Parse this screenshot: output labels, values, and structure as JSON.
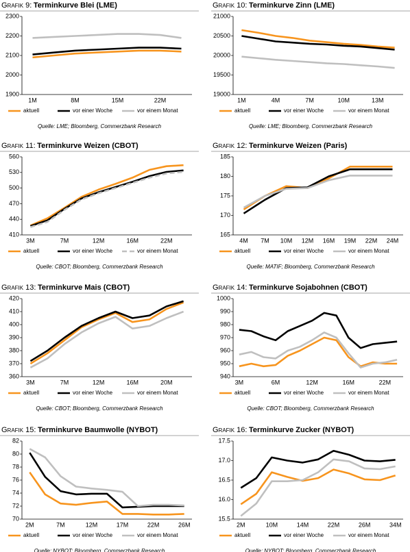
{
  "chart_data": [
    {
      "type": "line",
      "label": "Grafik 9:",
      "title": "Terminkurve Blei (LME)",
      "source": "Quelle: LME; Bloomberg, Commerzbank Research",
      "categories": [
        "1M",
        null,
        "8M",
        null,
        "15M",
        null,
        "22M",
        null
      ],
      "series": [
        {
          "name": "aktuell",
          "color": "#f7941d",
          "values": [
            2090,
            2100,
            2110,
            2115,
            2120,
            2125,
            2125,
            2120
          ]
        },
        {
          "name": "vor einer Woche",
          "color": "#000000",
          "values": [
            2105,
            2115,
            2125,
            2130,
            2135,
            2140,
            2140,
            2135
          ]
        },
        {
          "name": "vor einem Monat",
          "color": "#bfbfbf",
          "values": [
            2190,
            2195,
            2200,
            2205,
            2210,
            2210,
            2205,
            2190
          ]
        }
      ],
      "ylim": [
        1900,
        2300
      ],
      "yticks": [
        1900,
        2000,
        2100,
        2200,
        2300
      ],
      "legend": "bottom"
    },
    {
      "type": "line",
      "label": "Grafik 10:",
      "title": "Terminkurve Zinn (LME)",
      "source": "Quelle: LME; Bloomberg, Commerzbank Research",
      "categories": [
        "1M",
        null,
        "4M",
        null,
        "7M",
        null,
        "10M",
        null,
        "13M",
        null
      ],
      "series": [
        {
          "name": "aktuell",
          "color": "#f7941d",
          "values": [
            20650,
            20580,
            20500,
            20450,
            20380,
            20340,
            20300,
            20270,
            20230,
            20200
          ]
        },
        {
          "name": "vor einer Woche",
          "color": "#000000",
          "values": [
            20500,
            20430,
            20360,
            20330,
            20300,
            20280,
            20250,
            20230,
            20190,
            20150
          ]
        },
        {
          "name": "vor einem Monat",
          "color": "#bfbfbf",
          "values": [
            19970,
            19930,
            19890,
            19860,
            19830,
            19800,
            19780,
            19750,
            19720,
            19680
          ]
        }
      ],
      "ylim": [
        19000,
        21000
      ],
      "yticks": [
        19000,
        19500,
        20000,
        20500,
        21000
      ],
      "legend": "bottom"
    },
    {
      "type": "line",
      "label": "Grafik 11:",
      "title": "Terminkurve Weizen (CBOT)",
      "source": "Quelle: CBOT; Bloomberg, Commerzbank Research",
      "categories": [
        "3M",
        null,
        "7M",
        null,
        "12M",
        null,
        "16M",
        null,
        "22M",
        null
      ],
      "series": [
        {
          "name": "aktuell",
          "color": "#f7941d",
          "values": [
            428,
            442,
            462,
            483,
            497,
            508,
            520,
            535,
            542,
            544
          ]
        },
        {
          "name": "vor einer Woche",
          "color": "#000000",
          "values": [
            427,
            438,
            460,
            480,
            492,
            502,
            512,
            523,
            531,
            534
          ]
        },
        {
          "name": "vor einem Monat",
          "color": "#bfbfbf",
          "dash": true,
          "values": [
            425,
            435,
            458,
            478,
            490,
            500,
            510,
            520,
            528,
            531
          ]
        }
      ],
      "ylim": [
        410,
        560
      ],
      "yticks": [
        410,
        440,
        470,
        500,
        530,
        560
      ],
      "legend": "bottom"
    },
    {
      "type": "line",
      "label": "Grafik 12:",
      "title": "Terminkurve Weizen (Paris)",
      "source": "Quelle: MATIF; Bloomberg, Commerzbank Research",
      "categories": [
        "4M",
        "7M",
        "10M",
        "12M",
        "16M",
        "19M",
        "22M",
        "24M"
      ],
      "series": [
        {
          "name": "aktuell",
          "color": "#f7941d",
          "values": [
            171.5,
            175,
            177.5,
            177,
            179.5,
            182.5,
            182.5,
            182.5
          ]
        },
        {
          "name": "vor einer Woche",
          "color": "#000000",
          "values": [
            170.5,
            174,
            177,
            177.2,
            180,
            181.8,
            181.8,
            181.8
          ]
        },
        {
          "name": "vor einem Monat",
          "color": "#bfbfbf",
          "values": [
            172,
            175,
            176.8,
            177,
            179,
            180.2,
            180.2,
            180.2
          ]
        }
      ],
      "ylim": [
        165,
        185
      ],
      "yticks": [
        165,
        170,
        175,
        180,
        185
      ],
      "legend": "bottom"
    },
    {
      "type": "line",
      "label": "Grafik 13:",
      "title": "Terminkurve Mais (CBOT)",
      "source": "Quelle: CBOT; Bloomberg, Commerzbank Research",
      "categories": [
        "3M",
        null,
        "7M",
        null,
        "12M",
        null,
        "16M",
        null,
        "20M",
        null
      ],
      "series": [
        {
          "name": "aktuell",
          "color": "#f7941d",
          "values": [
            370,
            378,
            388,
            398,
            404,
            409,
            402,
            404,
            412,
            417
          ]
        },
        {
          "name": "vor einer Woche",
          "color": "#000000",
          "values": [
            372,
            380,
            390,
            399,
            405,
            410,
            405,
            407,
            414,
            418
          ]
        },
        {
          "name": "vor einem Monat",
          "color": "#bfbfbf",
          "values": [
            367,
            374,
            385,
            394,
            401,
            406,
            397,
            399,
            405,
            410
          ]
        }
      ],
      "ylim": [
        360,
        420
      ],
      "yticks": [
        360,
        370,
        380,
        390,
        400,
        410,
        420
      ],
      "legend": "bottom"
    },
    {
      "type": "line",
      "label": "Grafik 14:",
      "title": "Terminkurve Sojabohnen (CBOT)",
      "source": "Quelle: CBOT; Bloomberg, Commerzbank Research",
      "categories": [
        "3M",
        null,
        null,
        "6M",
        null,
        null,
        "12M",
        null,
        null,
        "16M",
        null,
        null,
        "22M",
        null
      ],
      "series": [
        {
          "name": "aktuell",
          "color": "#f7941d",
          "values": [
            948,
            950,
            948,
            949,
            956,
            960,
            965,
            970,
            968,
            955,
            948,
            951,
            950,
            950
          ]
        },
        {
          "name": "vor einer Woche",
          "color": "#000000",
          "values": [
            976,
            975,
            971,
            968,
            975,
            979,
            983,
            989,
            987,
            970,
            962,
            965,
            966,
            967
          ]
        },
        {
          "name": "vor einem Monat",
          "color": "#bfbfbf",
          "values": [
            957,
            959,
            955,
            954,
            960,
            963,
            968,
            974,
            970,
            958,
            947,
            950,
            951,
            953
          ]
        }
      ],
      "ylim": [
        940,
        1000
      ],
      "yticks": [
        940,
        950,
        960,
        970,
        980,
        990,
        1000
      ],
      "legend": "bottom"
    },
    {
      "type": "line",
      "label": "Grafik 15:",
      "title": "Terminkurve Baumwolle (NYBOT)",
      "source": "Quelle: NYBOT; Bloomberg, Commerzbank Research",
      "categories": [
        "2M",
        null,
        "7M",
        null,
        "12M",
        null,
        "17M",
        null,
        "22M",
        null,
        "26M"
      ],
      "series": [
        {
          "name": "aktuell",
          "color": "#f7941d",
          "values": [
            77.2,
            73.8,
            72.4,
            72.2,
            72.5,
            72.7,
            70.8,
            70.8,
            70.7,
            70.7,
            70.8
          ]
        },
        {
          "name": "vor einer Woche",
          "color": "#000000",
          "values": [
            80.2,
            76.5,
            74.3,
            73.8,
            73.9,
            73.9,
            71.8,
            71.9,
            72,
            72,
            72
          ]
        },
        {
          "name": "vor einem Monat",
          "color": "#bfbfbf",
          "values": [
            80.8,
            79.5,
            76.6,
            75,
            74.7,
            74.5,
            74.2,
            72,
            72.2,
            72.2,
            72.1
          ]
        }
      ],
      "ylim": [
        70,
        82
      ],
      "yticks": [
        70,
        72,
        74,
        76,
        78,
        80,
        82
      ],
      "legend": "bottom"
    },
    {
      "type": "line",
      "label": "Grafik 16:",
      "title": "Terminkurve Zucker (NYBOT)",
      "source": "Quelle: NYBOT; Bloomberg, Commerzbank Research",
      "categories": [
        "2M",
        null,
        "10M",
        null,
        "14M",
        null,
        "22M",
        null,
        "26M",
        null,
        "34M"
      ],
      "series": [
        {
          "name": "aktuell",
          "color": "#f7941d",
          "values": [
            15.88,
            16.15,
            16.7,
            16.58,
            16.48,
            16.55,
            16.77,
            16.67,
            16.52,
            16.5,
            16.62
          ]
        },
        {
          "name": "vor einer Woche",
          "color": "#000000",
          "values": [
            16.3,
            16.55,
            17.08,
            17,
            16.95,
            17.03,
            17.25,
            17.15,
            17,
            16.98,
            17.02
          ]
        },
        {
          "name": "vor einem Monat",
          "color": "#bfbfbf",
          "values": [
            15.58,
            15.9,
            16.47,
            16.47,
            16.5,
            16.7,
            17.03,
            16.98,
            16.8,
            16.78,
            16.85
          ]
        }
      ],
      "ylim": [
        15.5,
        17.5
      ],
      "yticks": [
        15.5,
        {
          "value": 16,
          "label": "16.0"
        },
        16.5,
        {
          "value": 17,
          "label": "17.0"
        },
        17.5
      ],
      "legend": "bottom"
    }
  ]
}
